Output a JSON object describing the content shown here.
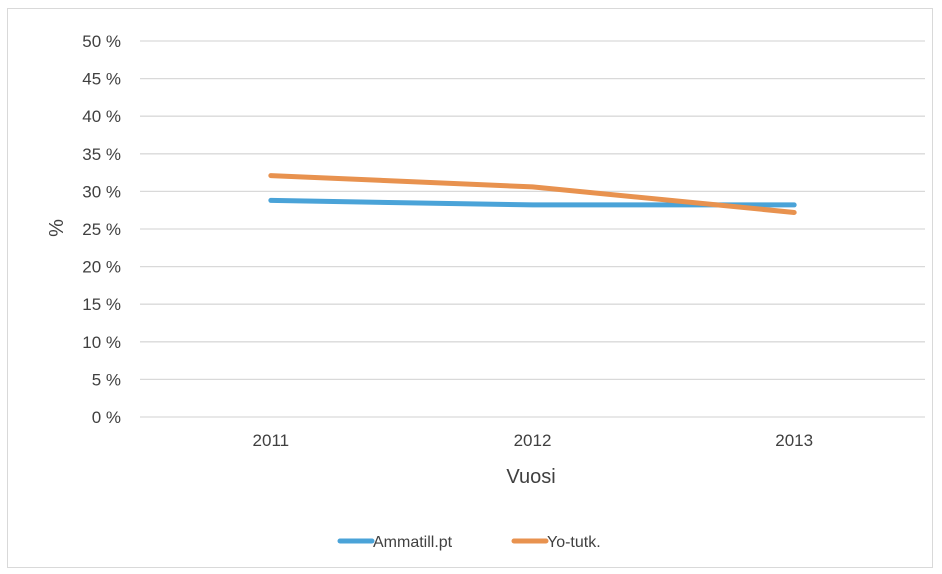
{
  "chart_data": {
    "type": "line",
    "title": "",
    "xlabel": "Vuosi",
    "ylabel": "%",
    "categories": [
      "2011",
      "2012",
      "2013"
    ],
    "ylim": [
      0,
      50
    ],
    "yticks": [
      0,
      5,
      10,
      15,
      20,
      25,
      30,
      35,
      40,
      45,
      50
    ],
    "ytick_labels": [
      "0 %",
      "5 %",
      "10 %",
      "15 %",
      "20 %",
      "25 %",
      "30 %",
      "35 %",
      "40 %",
      "45 %",
      "50 %"
    ],
    "grid": true,
    "legend_position": "bottom",
    "series": [
      {
        "name": "Ammatill.pt",
        "color": "#4aa3d8",
        "values": [
          28.8,
          28.2,
          28.2
        ]
      },
      {
        "name": "Yo-tutk.",
        "color": "#e8924f",
        "values": [
          32.1,
          30.6,
          27.2
        ]
      }
    ]
  }
}
